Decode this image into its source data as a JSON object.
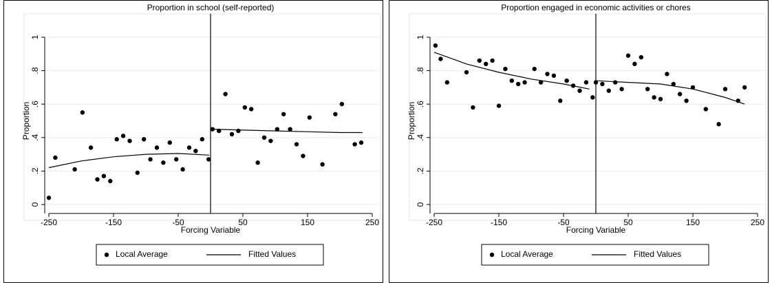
{
  "chart_data": [
    {
      "type": "scatter",
      "title": "Proportion in school (self-reported)",
      "x_label": "Forcing Variable",
      "y_label": "Proportion",
      "xlim": [
        -250,
        250
      ],
      "ylim": [
        0,
        1
      ],
      "xticks": [
        -250,
        -150,
        -50,
        50,
        150,
        250
      ],
      "yticks": [
        {
          "value": 0,
          "label": "0"
        },
        {
          "value": 0.2,
          "label": ".2"
        },
        {
          "value": 0.4,
          "label": ".4"
        },
        {
          "value": 0.6,
          "label": ".6"
        },
        {
          "value": 0.8,
          "label": ".8"
        },
        {
          "value": 1,
          "label": "1"
        }
      ],
      "grid": true,
      "cutoff": 0,
      "series": [
        {
          "name": "Local Average",
          "color": "#000000",
          "x": [
            -250,
            -240,
            -210,
            -198,
            -185,
            -175,
            -165,
            -155,
            -145,
            -135,
            -125,
            -113,
            -103,
            -93,
            -83,
            -73,
            -63,
            -53,
            -43,
            -33,
            -23,
            -13,
            -3,
            3,
            13,
            23,
            33,
            43,
            53,
            63,
            73,
            83,
            93,
            103,
            113,
            123,
            133,
            143,
            153,
            173,
            193,
            203,
            223,
            233
          ],
          "values": [
            0.04,
            0.28,
            0.21,
            0.55,
            0.34,
            0.15,
            0.17,
            0.14,
            0.39,
            0.41,
            0.38,
            0.19,
            0.39,
            0.27,
            0.34,
            0.25,
            0.37,
            0.27,
            0.21,
            0.34,
            0.32,
            0.39,
            0.27,
            0.45,
            0.44,
            0.66,
            0.42,
            0.44,
            0.58,
            0.57,
            0.25,
            0.4,
            0.38,
            0.45,
            0.54,
            0.45,
            0.36,
            0.29,
            0.52,
            0.24,
            0.54,
            0.6,
            0.36,
            0.37
          ]
        },
        {
          "name": "Fitted Values",
          "color": "#000000",
          "x": [
            -250,
            -200,
            -150,
            -100,
            -50,
            -2,
            0,
            2,
            50,
            100,
            150,
            200,
            235
          ],
          "values": [
            0.22,
            0.26,
            0.285,
            0.3,
            0.305,
            0.295,
            null,
            0.45,
            0.445,
            0.44,
            0.435,
            0.43,
            0.43
          ]
        }
      ]
    },
    {
      "type": "scatter",
      "title": "Proportion engaged in economic activities or chores",
      "x_label": "Forcing Variable",
      "y_label": "Proportion",
      "xlim": [
        -250,
        250
      ],
      "ylim": [
        0,
        1
      ],
      "xticks": [
        -250,
        -150,
        -50,
        50,
        150,
        250
      ],
      "yticks": [
        {
          "value": 0,
          "label": "0"
        },
        {
          "value": 0.2,
          "label": ".2"
        },
        {
          "value": 0.4,
          "label": ".4"
        },
        {
          "value": 0.6,
          "label": ".6"
        },
        {
          "value": 0.8,
          "label": ".8"
        },
        {
          "value": 1,
          "label": "1"
        }
      ],
      "grid": true,
      "cutoff": 0,
      "series": [
        {
          "name": "Local Average",
          "color": "#000000",
          "x": [
            -248,
            -240,
            -230,
            -200,
            -190,
            -180,
            -170,
            -160,
            -150,
            -140,
            -130,
            -120,
            -110,
            -95,
            -85,
            -75,
            -65,
            -55,
            -45,
            -35,
            -25,
            -15,
            -5,
            0,
            10,
            20,
            30,
            40,
            50,
            60,
            70,
            80,
            90,
            100,
            110,
            120,
            130,
            140,
            150,
            170,
            190,
            200,
            220,
            230
          ],
          "values": [
            0.95,
            0.87,
            0.73,
            0.79,
            0.58,
            0.86,
            0.84,
            0.86,
            0.59,
            0.81,
            0.74,
            0.72,
            0.73,
            0.81,
            0.73,
            0.78,
            0.77,
            0.62,
            0.74,
            0.71,
            0.68,
            0.73,
            0.64,
            0.73,
            0.72,
            0.68,
            0.73,
            0.69,
            0.89,
            0.84,
            0.88,
            0.69,
            0.64,
            0.63,
            0.78,
            0.72,
            0.66,
            0.62,
            0.7,
            0.57,
            0.48,
            0.69,
            0.62,
            0.7
          ]
        },
        {
          "name": "Fitted Values",
          "color": "#000000",
          "x": [
            -250,
            -200,
            -150,
            -100,
            -50,
            -10,
            -5,
            0,
            50,
            100,
            150,
            200,
            230
          ],
          "values": [
            0.91,
            0.84,
            0.79,
            0.75,
            0.72,
            0.69,
            null,
            0.74,
            0.73,
            0.72,
            0.69,
            0.64,
            0.6
          ]
        }
      ]
    }
  ]
}
